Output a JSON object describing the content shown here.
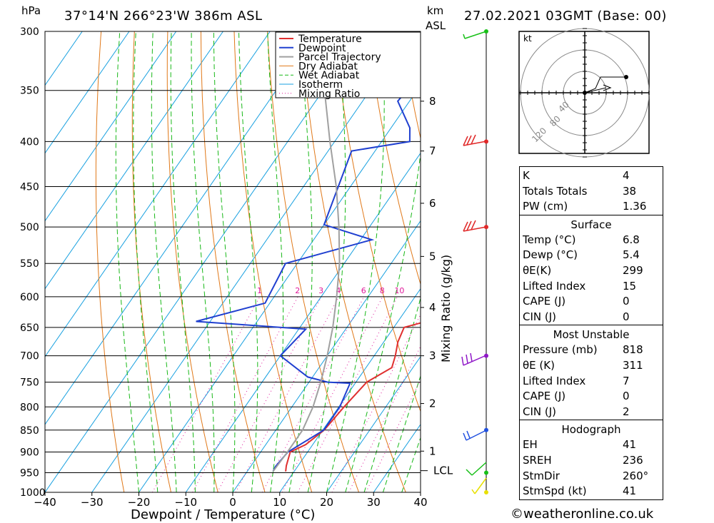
{
  "header": {
    "station": "37°14'N  266°23'W  386m  ASL",
    "datetime": "27.02.2021  03GMT  (Base: 00)",
    "hpa_label": "hPa",
    "km_label": "km",
    "asl_label": "ASL"
  },
  "footer": "©weatheronline.co.uk",
  "legend": [
    "Temperature",
    "Dewpoint",
    "Parcel Trajectory",
    "Dry Adiabat",
    "Wet Adiabat",
    "Isotherm",
    "Mixing Ratio"
  ],
  "colors": {
    "temperature": "#e03030",
    "dewpoint": "#2040d0",
    "parcel": "#a0a0a0",
    "dry_adiabat": "#e07818",
    "wet_adiabat": "#18b818",
    "isotherm": "#18a0e0",
    "mixing_ratio": "#e0189a",
    "wind_high": "#e02828",
    "wind_mid": "#9018c8",
    "wind_850": "#2050e0",
    "wind_low": "#18c018",
    "wind_sfc": "#e8e000"
  },
  "chart_data": {
    "type": "line",
    "title": "",
    "xlabel": "Dewpoint / Temperature (°C)",
    "ylabel": "hPa",
    "xlim": [
      -40,
      40
    ],
    "ylim": [
      1000,
      300
    ],
    "x_ticks": [
      -40,
      -30,
      -20,
      -10,
      0,
      10,
      20,
      30,
      40
    ],
    "pressure_levels": [
      300,
      350,
      400,
      450,
      500,
      550,
      600,
      650,
      700,
      750,
      800,
      850,
      900,
      950,
      1000
    ],
    "height_axis": {
      "label": "km ASL",
      "ticks": [
        {
          "km": "8",
          "p": 360
        },
        {
          "km": "7",
          "p": 410
        },
        {
          "km": "6",
          "p": 470
        },
        {
          "km": "5",
          "p": 540
        },
        {
          "km": "4",
          "p": 617
        },
        {
          "km": "3",
          "p": 700
        },
        {
          "km": "2",
          "p": 793
        },
        {
          "km": "1",
          "p": 898
        }
      ],
      "lcl_label": "LCL",
      "lcl_p": 945
    },
    "mixing_ratio_label": "Mixing Ratio (g/kg)",
    "mixing_ratios": [
      "1",
      "2",
      "3",
      "4",
      "6",
      "8",
      "10",
      "16",
      "20",
      "25"
    ],
    "series": [
      {
        "name": "Temperature",
        "points": [
          [
            947,
            8.2
          ],
          [
            933,
            7.5
          ],
          [
            900,
            6.3
          ],
          [
            883,
            8.5
          ],
          [
            850,
            10.3
          ],
          [
            800,
            11.1
          ],
          [
            750,
            12.3
          ],
          [
            722,
            15.5
          ],
          [
            700,
            14.5
          ],
          [
            675,
            13.0
          ],
          [
            650,
            12.2
          ],
          [
            640,
            16.0
          ],
          [
            600,
            17.7
          ],
          [
            550,
            16.2
          ],
          [
            500,
            10.7
          ],
          [
            450,
            5.4
          ],
          [
            400,
            -0.5
          ],
          [
            384,
            -2.0
          ],
          [
            350,
            -6.2
          ],
          [
            337,
            -7.1
          ],
          [
            300,
            -14.0
          ]
        ]
      },
      {
        "name": "Dewpoint",
        "points": [
          [
            947,
            5.5
          ],
          [
            935,
            5.3
          ],
          [
            900,
            5.8
          ],
          [
            850,
            10.2
          ],
          [
            800,
            10.2
          ],
          [
            752,
            8.9
          ],
          [
            750,
            4.0
          ],
          [
            740,
            -1.0
          ],
          [
            700,
            -10.0
          ],
          [
            653,
            -8.5
          ],
          [
            640,
            -33.0
          ],
          [
            610,
            -21.0
          ],
          [
            550,
            -22.5
          ],
          [
            517,
            -7.6
          ],
          [
            497,
            -20.0
          ],
          [
            410,
            -25.0
          ],
          [
            400,
            -14.0
          ],
          [
            386,
            -16.0
          ],
          [
            360,
            -22.5
          ],
          [
            345,
            -22.0
          ],
          [
            338,
            -13.5
          ],
          [
            320,
            -18.0
          ],
          [
            300,
            -17.0
          ]
        ]
      },
      {
        "name": "Parcel Trajectory",
        "points": [
          [
            947,
            5.5
          ],
          [
            900,
            5.7
          ],
          [
            850,
            5.7
          ],
          [
            800,
            4.5
          ],
          [
            750,
            2.5
          ],
          [
            700,
            0.0
          ],
          [
            650,
            -3.0
          ],
          [
            600,
            -6.7
          ],
          [
            550,
            -11.0
          ],
          [
            500,
            -16.5
          ],
          [
            450,
            -23.0
          ],
          [
            400,
            -31.0
          ],
          [
            350,
            -39.7
          ],
          [
            300,
            -51.0
          ]
        ]
      }
    ],
    "indices": {
      "general": [
        {
          "label": "K",
          "value": "4"
        },
        {
          "label": "Totals Totals",
          "value": "38"
        },
        {
          "label": "PW (cm)",
          "value": "1.36"
        }
      ],
      "surface": {
        "title": "Surface",
        "rows": [
          {
            "label": "Temp (°C)",
            "value": "6.8"
          },
          {
            "label": "Dewp (°C)",
            "value": "5.4"
          },
          {
            "label": "θE(K)",
            "value": "299"
          },
          {
            "label": "Lifted Index",
            "value": "15"
          },
          {
            "label": "CAPE (J)",
            "value": "0"
          },
          {
            "label": "CIN (J)",
            "value": "0"
          }
        ]
      },
      "most_unstable": {
        "title": "Most Unstable",
        "rows": [
          {
            "label": "Pressure (mb)",
            "value": "818"
          },
          {
            "label": "θE (K)",
            "value": "311"
          },
          {
            "label": "Lifted Index",
            "value": "7"
          },
          {
            "label": "CAPE (J)",
            "value": "0"
          },
          {
            "label": "CIN (J)",
            "value": "2"
          }
        ]
      },
      "hodograph": {
        "title": "Hodograph",
        "rows": [
          {
            "label": "EH",
            "value": "41"
          },
          {
            "label": "SREH",
            "value": "236"
          },
          {
            "label": "StmDir",
            "value": "260°"
          },
          {
            "label": "StmSpd (kt)",
            "value": "41"
          }
        ]
      }
    },
    "hodograph_plot": {
      "unit_label": "kt",
      "ring_labels": [
        "40",
        "80",
        "120"
      ],
      "trace_kt": [
        [
          0,
          0
        ],
        [
          15,
          6
        ],
        [
          22,
          22
        ],
        [
          58,
          22
        ]
      ],
      "storm_motion_kt": [
        40,
        7
      ]
    }
  }
}
